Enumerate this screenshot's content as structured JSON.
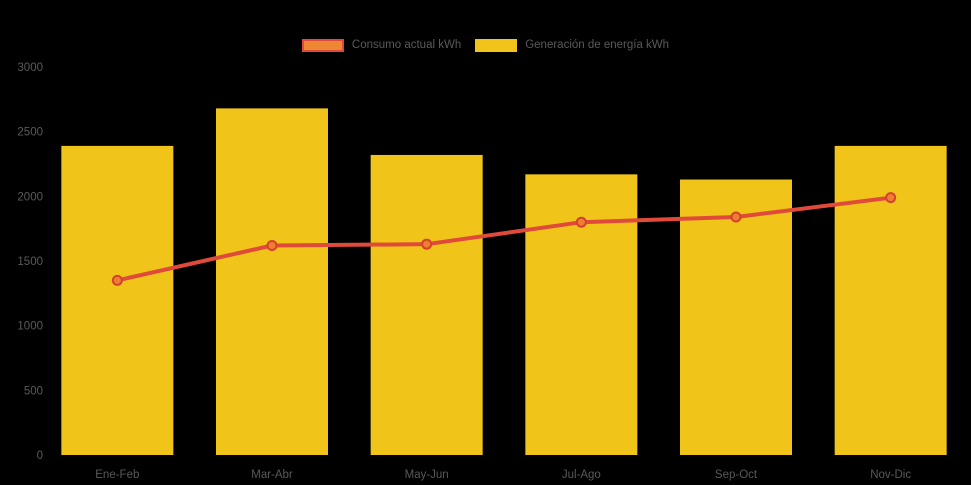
{
  "page": {
    "background_color": "#000000",
    "text_color": "#595959"
  },
  "legend": {
    "position": "top-center",
    "items": [
      {
        "swatch_fill": "#ED8733",
        "swatch_border": "#E0493A"
      },
      {
        "swatch_fill": "#F0C419",
        "swatch_border": "#F0C419"
      }
    ]
  },
  "chart_data": {
    "type": "combo",
    "categories": [
      "Ene-Feb",
      "Mar-Abr",
      "May-Jun",
      "Jul-Ago",
      "Sep-Oct",
      "Nov-Dic"
    ],
    "series": [
      {
        "name": "Consumo actual kWh",
        "type": "line",
        "color": "#E04A3A",
        "marker_fill": "#EC8030",
        "marker_stroke": "#D6402F",
        "values": [
          1350,
          1620,
          1630,
          1800,
          1840,
          1990
        ]
      },
      {
        "name": "Generación de energía kWh",
        "type": "bar",
        "color": "#F0C419",
        "values": [
          2390,
          2680,
          2320,
          2170,
          2130,
          2390
        ]
      }
    ],
    "ylim": [
      0,
      3000
    ],
    "ytick_step": 500,
    "ytick_labels": [
      "0",
      "500",
      "1000",
      "1500",
      "2000",
      "2500",
      "3000"
    ],
    "grid": false,
    "legend_position": "top",
    "axis_label_color": "#595959",
    "title": "",
    "xlabel": "",
    "ylabel": ""
  }
}
